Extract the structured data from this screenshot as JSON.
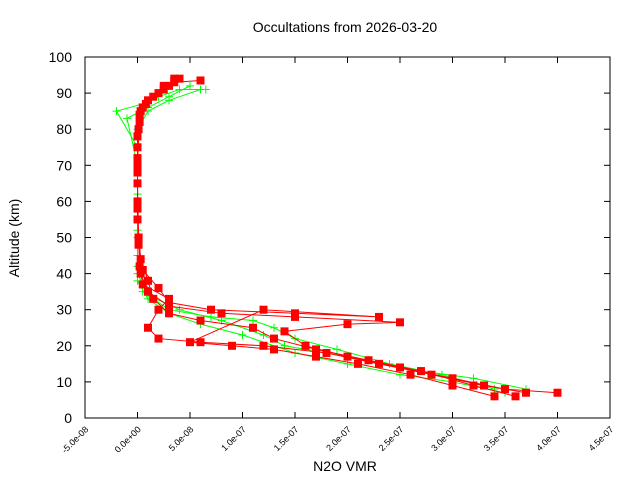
{
  "chart_data": {
    "type": "line",
    "title": "Occultations from 2026-03-20",
    "xlabel": "N2O VMR",
    "ylabel": "Altitude (km)",
    "xlim": [
      -5e-08,
      4.5e-07
    ],
    "ylim": [
      0,
      100
    ],
    "x_ticks": [
      "-5.0e-08",
      "0.0e+00",
      "5.0e-08",
      "1.0e-07",
      "1.5e-07",
      "2.0e-07",
      "2.5e-07",
      "3.0e-07",
      "3.5e-07",
      "4.0e-07",
      "4.5e-07"
    ],
    "y_ticks": [
      "0",
      "10",
      "20",
      "30",
      "40",
      "50",
      "60",
      "70",
      "80",
      "90",
      "100"
    ],
    "grid": false,
    "series": [
      {
        "color": "#00ff00",
        "marker": "plus",
        "profiles": [
          [
            [
              3.5e-07,
              7
            ],
            [
              3e-07,
              10
            ],
            [
              2.5e-07,
              12
            ],
            [
              2e-07,
              15
            ],
            [
              1.5e-07,
              18
            ],
            [
              1e-07,
              23
            ],
            [
              6e-08,
              26
            ],
            [
              3e-08,
              29
            ],
            [
              1e-08,
              33
            ],
            [
              0,
              38
            ],
            [
              0,
              45
            ],
            [
              0,
              55
            ],
            [
              0,
              65
            ],
            [
              0,
              75
            ],
            [
              -2e-08,
              85
            ],
            [
              5e-09,
              87
            ],
            [
              2e-08,
              89
            ],
            [
              4e-08,
              91
            ],
            [
              6.5e-08,
              91
            ]
          ],
          [
            [
              3.7e-07,
              8
            ],
            [
              3.2e-07,
              11
            ],
            [
              2.7e-07,
              13
            ],
            [
              2.2e-07,
              16
            ],
            [
              1.8e-07,
              18
            ],
            [
              1.4e-07,
              20
            ],
            [
              1.2e-07,
              23
            ],
            [
              8e-08,
              27
            ],
            [
              4e-08,
              30
            ],
            [
              1e-08,
              34
            ],
            [
              0,
              40
            ],
            [
              0,
              50
            ],
            [
              0,
              60
            ],
            [
              0,
              70
            ],
            [
              -1e-08,
              83
            ],
            [
              1e-08,
              86
            ],
            [
              3e-08,
              89
            ],
            [
              5e-08,
              92
            ]
          ],
          [
            [
              3.4e-07,
              8
            ],
            [
              2.9e-07,
              12
            ],
            [
              2.4e-07,
              15
            ],
            [
              1.9e-07,
              19
            ],
            [
              1.5e-07,
              22
            ],
            [
              1.3e-07,
              25
            ],
            [
              1.1e-07,
              27
            ],
            [
              7e-08,
              28
            ],
            [
              3e-08,
              30
            ],
            [
              5e-09,
              35
            ],
            [
              0,
              42
            ],
            [
              0,
              52
            ],
            [
              0,
              62
            ],
            [
              0,
              72
            ],
            [
              0,
              80
            ],
            [
              1e-08,
              85
            ],
            [
              3e-08,
              88
            ],
            [
              6e-08,
              91
            ]
          ]
        ]
      },
      {
        "color": "#ff0000",
        "marker": "filled-square",
        "profiles": [
          [
            [
              3.7e-07,
              7
            ],
            [
              3.3e-07,
              9
            ],
            [
              2.8e-07,
              12
            ],
            [
              2.3e-07,
              15
            ],
            [
              1.8e-07,
              18
            ],
            [
              1.2e-07,
              20
            ],
            [
              6e-08,
              21
            ],
            [
              2e-08,
              22
            ],
            [
              1e-08,
              25
            ],
            [
              2e-08,
              30
            ],
            [
              3e-08,
              33
            ],
            [
              5e-09,
              37
            ],
            [
              2e-09,
              42
            ],
            [
              1e-09,
              50
            ],
            [
              0,
              60
            ],
            [
              0,
              70
            ],
            [
              1e-09,
              80
            ],
            [
              5e-09,
              86
            ],
            [
              2e-08,
              90
            ],
            [
              3.5e-08,
              93
            ],
            [
              6e-08,
              93.5
            ]
          ],
          [
            [
              4e-07,
              7
            ],
            [
              3.5e-07,
              8
            ],
            [
              3e-07,
              11
            ],
            [
              2.5e-07,
              14
            ],
            [
              2e-07,
              17
            ],
            [
              1.6e-07,
              20
            ],
            [
              1.4e-07,
              24
            ],
            [
              2e-07,
              26
            ],
            [
              2.5e-07,
              26.5
            ],
            [
              1.5e-07,
              28
            ],
            [
              8e-08,
              29
            ],
            [
              3e-08,
              31
            ],
            [
              1e-08,
              35
            ],
            [
              3e-09,
              40
            ],
            [
              1e-09,
              50
            ],
            [
              0,
              65
            ],
            [
              0,
              75
            ],
            [
              2e-09,
              84
            ],
            [
              1e-08,
              88
            ],
            [
              2.5e-08,
              92
            ],
            [
              4e-08,
              94
            ]
          ],
          [
            [
              3.6e-07,
              6
            ],
            [
              3.2e-07,
              9
            ],
            [
              2.7e-07,
              13
            ],
            [
              2.2e-07,
              16
            ],
            [
              1.7e-07,
              19
            ],
            [
              1.3e-07,
              22
            ],
            [
              1.1e-07,
              25
            ],
            [
              6e-08,
              27
            ],
            [
              3e-08,
              29
            ],
            [
              1.5e-08,
              33
            ],
            [
              1e-08,
              38
            ],
            [
              3e-09,
              44
            ],
            [
              0,
              55
            ],
            [
              0,
              68
            ],
            [
              0,
              78
            ],
            [
              3e-09,
              85
            ],
            [
              1.5e-08,
              89
            ],
            [
              3e-08,
              92
            ]
          ],
          [
            [
              3.4e-07,
              6
            ],
            [
              3e-07,
              9
            ],
            [
              2.6e-07,
              12
            ],
            [
              2.1e-07,
              15
            ],
            [
              1.7e-07,
              17
            ],
            [
              1.3e-07,
              19
            ],
            [
              9e-08,
              20
            ],
            [
              5e-08,
              21
            ],
            [
              1.2e-07,
              30
            ],
            [
              2.3e-07,
              28
            ],
            [
              1.5e-07,
              29
            ],
            [
              7e-08,
              30
            ],
            [
              3e-08,
              32
            ],
            [
              2e-08,
              36
            ],
            [
              5e-09,
              41
            ],
            [
              1e-09,
              48
            ],
            [
              0,
              58
            ],
            [
              0,
              72
            ],
            [
              2e-09,
              82
            ],
            [
              8e-09,
              87
            ],
            [
              2.5e-08,
              91
            ],
            [
              3.5e-08,
              94
            ]
          ]
        ]
      }
    ]
  }
}
